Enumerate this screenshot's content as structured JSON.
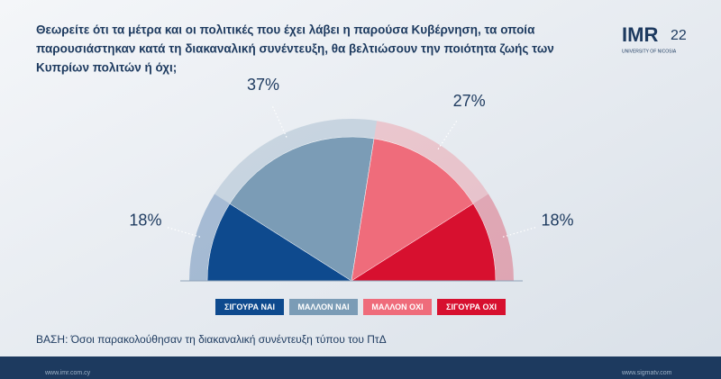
{
  "chart_data": {
    "type": "pie",
    "semicircle": true,
    "title": [
      "Θεωρείτε ότι τα μέτρα και οι πολιτικές που έχει λάβει η παρούσα Κυβέρνηση, τα οποία",
      "παρουσιάστηκαν κατά τη διακαναλική συνέντευξη, θα βελτιώσουν την ποιότητα ζωής των",
      "Κυπρίων πολιτών ή όχι;"
    ],
    "categories": [
      "ΣΙΓΟΥΡΑ ΝΑΙ",
      "ΜΑΛΛΟΝ ΝΑΙ",
      "ΜΑΛΛΟΝ ΟΧΙ",
      "ΣΙΓΟΥΡΑ ΟΧΙ"
    ],
    "values": [
      18,
      37,
      27,
      18
    ],
    "value_labels": [
      "18%",
      "37%",
      "27%",
      "18%"
    ],
    "colors": [
      "#0e4a8e",
      "#7b9cb6",
      "#ef6c7b",
      "#d7102f"
    ],
    "note": "ΒΑΣΗ: Όσοι παρακολούθησαν τη διακαναλική συνέντευξη τύπου του ΠτΔ"
  },
  "logo": {
    "brand": "IMR",
    "years": "22",
    "caption": "UNIVERSITY OF NICOSIA"
  },
  "footer": {
    "left": "www.imr.com.cy",
    "right": "www.sigmatv.com"
  }
}
